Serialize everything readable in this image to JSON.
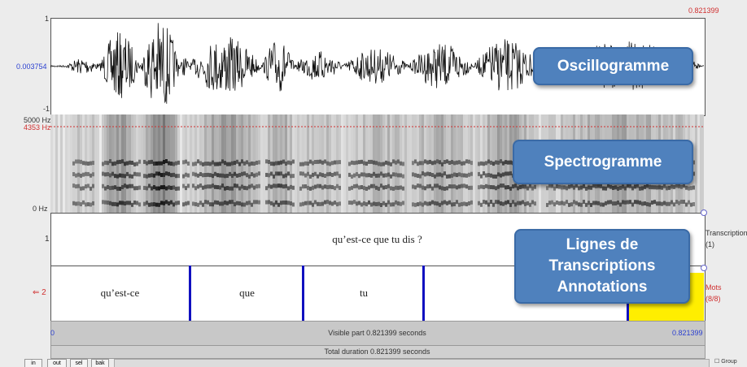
{
  "header": {
    "time_end": "0.821399"
  },
  "oscillogram": {
    "label": "Oscillogramme",
    "y_max": "1",
    "y_cursor": "0.003754",
    "y_min": "-1"
  },
  "spectrogram": {
    "label": "Spectrogramme",
    "f_max": "5000 Hz",
    "f_cursor": "4353 Hz",
    "f_min": "0 Hz"
  },
  "tiers": [
    {
      "number": "1",
      "name": "Transcription",
      "count": "(1)",
      "intervals": [
        "qu’est-ce que tu dis ?"
      ]
    },
    {
      "number": "2",
      "name": "Mots",
      "count": "(8/8)",
      "intervals": [
        "qu’est-ce",
        "que",
        "tu"
      ]
    }
  ],
  "annotation_label": [
    "Lignes de",
    "Transcriptions",
    "Annotations"
  ],
  "footer": {
    "start": "0",
    "visible": "Visible part 0.821399 seconds",
    "end": "0.821399",
    "total": "Total duration 0.821399 seconds"
  },
  "buttons": [
    "in",
    "out",
    "sel",
    "bak"
  ],
  "group": "Group"
}
